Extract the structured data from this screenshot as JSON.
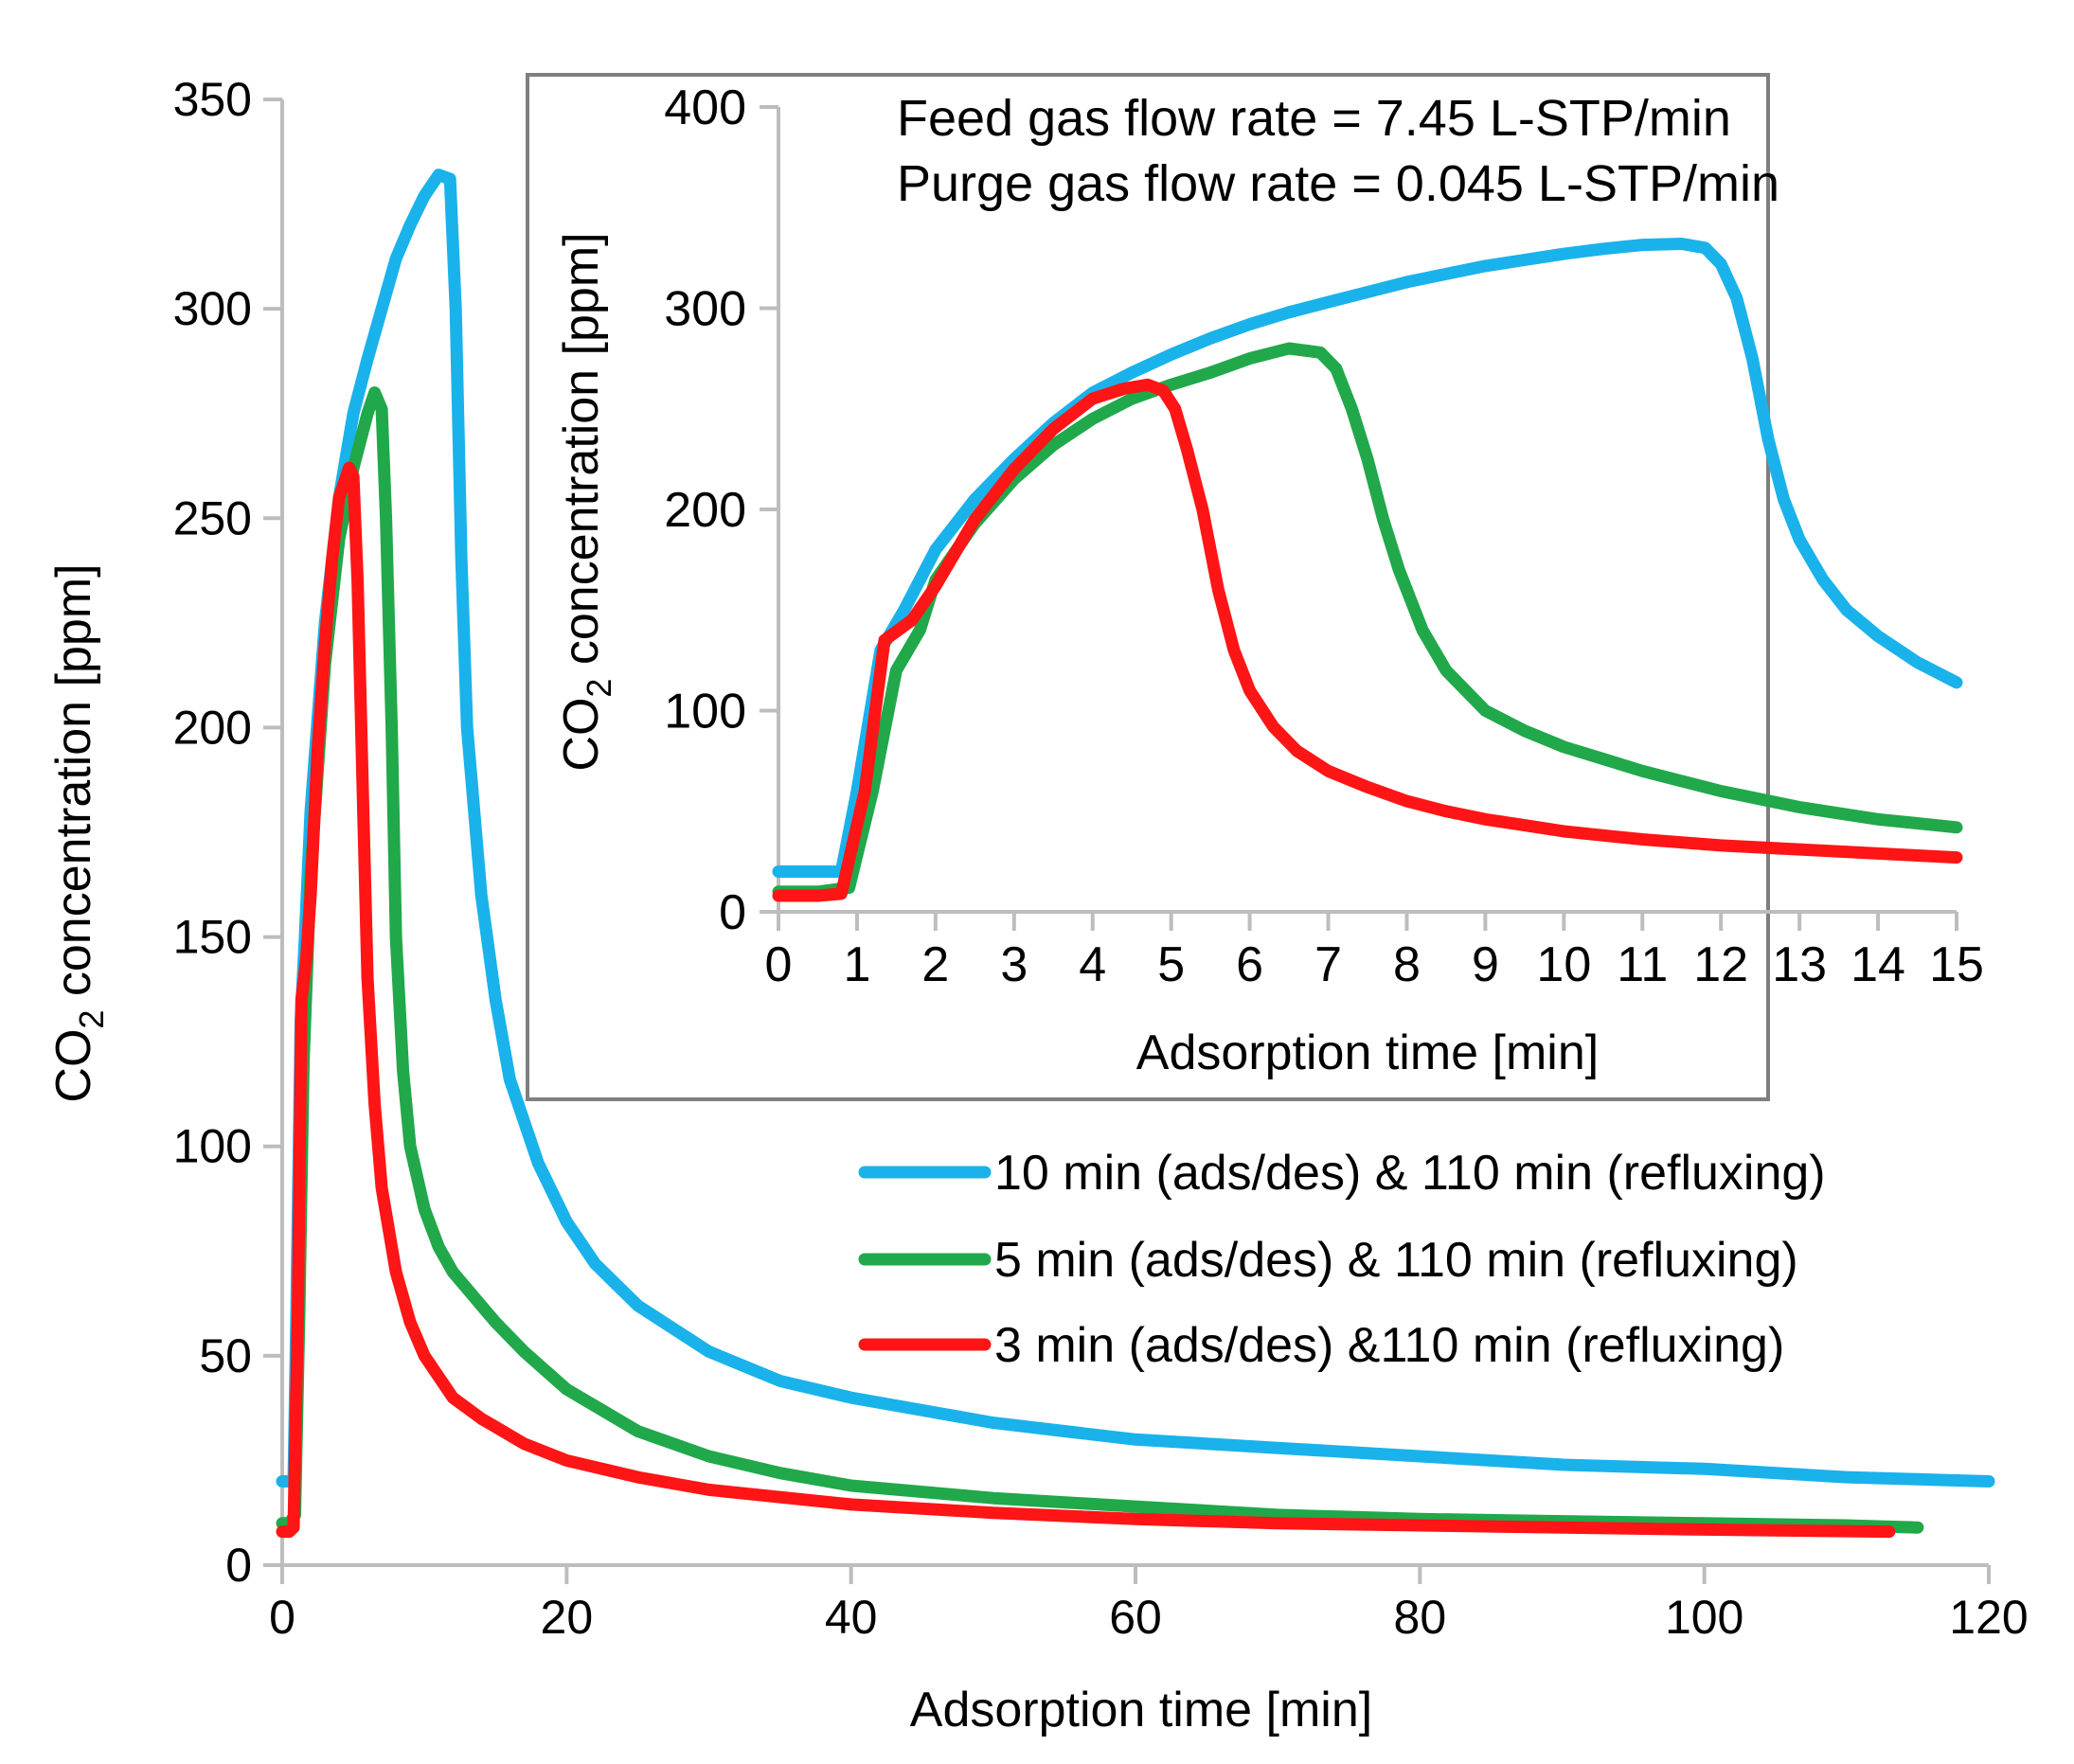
{
  "chart_data": [
    {
      "type": "line",
      "role": "main",
      "xlabel": "Adsorption time [min]",
      "ylabel_parts": {
        "pre": "CO",
        "sub": "2",
        "post": " concentration [ppm]"
      },
      "xlim": [
        0,
        120
      ],
      "ylim": [
        0,
        350
      ],
      "xticks": [
        0,
        20,
        40,
        60,
        80,
        100,
        120
      ],
      "yticks": [
        0,
        50,
        100,
        150,
        200,
        250,
        300,
        350
      ],
      "grid": false,
      "legend": {
        "position": "right-middle",
        "entries": [
          {
            "label": "10 min (ads/des) & 110 min (refluxing)",
            "color": "#1ab2eb"
          },
          {
            "label": "5 min (ads/des) & 110 min (refluxing)",
            "color": "#21a84a"
          },
          {
            "label": "3 min (ads/des) &110 min (refluxing)",
            "color": "#ff1515"
          }
        ]
      },
      "series": [
        {
          "name": "10 min (ads/des) & 110 min (refluxing)",
          "color": "#1ab2eb",
          "points": [
            [
              0,
              20
            ],
            [
              0.8,
              20
            ],
            [
              1,
              60
            ],
            [
              1.3,
              130
            ],
            [
              1.6,
              150
            ],
            [
              2,
              180
            ],
            [
              3,
              225
            ],
            [
              4,
              255
            ],
            [
              5,
              275
            ],
            [
              6,
              288
            ],
            [
              7,
              300
            ],
            [
              8,
              312
            ],
            [
              9,
              320
            ],
            [
              10,
              327
            ],
            [
              11,
              332
            ],
            [
              11.8,
              331
            ],
            [
              12.2,
              300
            ],
            [
              12.6,
              240
            ],
            [
              13,
              200
            ],
            [
              14,
              160
            ],
            [
              15,
              135
            ],
            [
              16,
              116
            ],
            [
              18,
              96
            ],
            [
              20,
              82
            ],
            [
              22,
              72
            ],
            [
              25,
              62
            ],
            [
              30,
              51
            ],
            [
              35,
              44
            ],
            [
              40,
              40
            ],
            [
              45,
              37
            ],
            [
              50,
              34
            ],
            [
              55,
              32
            ],
            [
              60,
              30
            ],
            [
              65,
              29
            ],
            [
              70,
              28
            ],
            [
              80,
              26
            ],
            [
              90,
              24
            ],
            [
              100,
              23
            ],
            [
              110,
              21
            ],
            [
              120,
              20
            ]
          ]
        },
        {
          "name": "5 min (ads/des) & 110 min (refluxing)",
          "color": "#21a84a",
          "points": [
            [
              0,
              10
            ],
            [
              0.5,
              10
            ],
            [
              0.9,
              12
            ],
            [
              1.2,
              60
            ],
            [
              1.5,
              120
            ],
            [
              2,
              165
            ],
            [
              3,
              215
            ],
            [
              4,
              245
            ],
            [
              5,
              262
            ],
            [
              6,
              275
            ],
            [
              6.5,
              280
            ],
            [
              7,
              276
            ],
            [
              7.3,
              250
            ],
            [
              7.7,
              200
            ],
            [
              8,
              150
            ],
            [
              8.5,
              118
            ],
            [
              9,
              100
            ],
            [
              10,
              85
            ],
            [
              11,
              76
            ],
            [
              12,
              70
            ],
            [
              13,
              66
            ],
            [
              14,
              62
            ],
            [
              15,
              58
            ],
            [
              17,
              51
            ],
            [
              20,
              42
            ],
            [
              25,
              32
            ],
            [
              30,
              26
            ],
            [
              35,
              22
            ],
            [
              40,
              19
            ],
            [
              50,
              16
            ],
            [
              60,
              14
            ],
            [
              70,
              12
            ],
            [
              80,
              11
            ],
            [
              90,
              10.5
            ],
            [
              100,
              10
            ],
            [
              110,
              9.5
            ],
            [
              115,
              9
            ]
          ]
        },
        {
          "name": "3 min (ads/des) &110 min (refluxing)",
          "color": "#ff1515",
          "points": [
            [
              0,
              8
            ],
            [
              0.5,
              8
            ],
            [
              0.8,
              9
            ],
            [
              1.1,
              60
            ],
            [
              1.35,
              135
            ],
            [
              1.7,
              145
            ],
            [
              2,
              160
            ],
            [
              2.5,
              195
            ],
            [
              3,
              220
            ],
            [
              3.5,
              240
            ],
            [
              4,
              255
            ],
            [
              4.7,
              262
            ],
            [
              5,
              260
            ],
            [
              5.3,
              235
            ],
            [
              5.7,
              180
            ],
            [
              6,
              140
            ],
            [
              6.5,
              110
            ],
            [
              7,
              90
            ],
            [
              8,
              70
            ],
            [
              9,
              58
            ],
            [
              10,
              50
            ],
            [
              12,
              40
            ],
            [
              14,
              35
            ],
            [
              15,
              33
            ],
            [
              17,
              29
            ],
            [
              20,
              25
            ],
            [
              25,
              21
            ],
            [
              30,
              18
            ],
            [
              40,
              14.5
            ],
            [
              50,
              12.5
            ],
            [
              60,
              11
            ],
            [
              70,
              10
            ],
            [
              80,
              9.5
            ],
            [
              90,
              9
            ],
            [
              100,
              8.5
            ],
            [
              113,
              8
            ]
          ]
        }
      ]
    },
    {
      "type": "line",
      "role": "inset",
      "position": "top-right",
      "xlabel": "Adsorption time [min]",
      "ylabel_parts": {
        "pre": "CO",
        "sub": "2",
        "post": " concentration [ppm]"
      },
      "xlim": [
        0,
        15
      ],
      "ylim": [
        0,
        400
      ],
      "xticks": [
        0,
        1,
        2,
        3,
        4,
        5,
        6,
        7,
        8,
        9,
        10,
        11,
        12,
        13,
        14,
        15
      ],
      "yticks": [
        0,
        100,
        200,
        300,
        400
      ],
      "annotations": [
        "Feed gas flow rate = 7.45 L-STP/min",
        "Purge gas flow rate = 0.045 L-STP/min"
      ],
      "series": [
        {
          "name": "10 min (ads/des) & 110 min (refluxing)",
          "color": "#1ab2eb",
          "points": [
            [
              0,
              20
            ],
            [
              0.8,
              20
            ],
            [
              1,
              60
            ],
            [
              1.3,
              130
            ],
            [
              1.6,
              150
            ],
            [
              2,
              180
            ],
            [
              2.5,
              205
            ],
            [
              3,
              225
            ],
            [
              3.5,
              243
            ],
            [
              4,
              258
            ],
            [
              4.5,
              268
            ],
            [
              5,
              277
            ],
            [
              5.5,
              285
            ],
            [
              6,
              292
            ],
            [
              6.5,
              298
            ],
            [
              7,
              303
            ],
            [
              7.5,
              308
            ],
            [
              8,
              313
            ],
            [
              8.5,
              317
            ],
            [
              9,
              321
            ],
            [
              9.5,
              324
            ],
            [
              10,
              327
            ],
            [
              10.5,
              329.5
            ],
            [
              11,
              331.5
            ],
            [
              11.5,
              332
            ],
            [
              11.8,
              330
            ],
            [
              12,
              322
            ],
            [
              12.2,
              305
            ],
            [
              12.4,
              275
            ],
            [
              12.6,
              235
            ],
            [
              12.8,
              205
            ],
            [
              13,
              185
            ],
            [
              13.3,
              165
            ],
            [
              13.6,
              150
            ],
            [
              14,
              137
            ],
            [
              14.5,
              124
            ],
            [
              15,
              114
            ]
          ]
        },
        {
          "name": "5 min (ads/des) & 110 min (refluxing)",
          "color": "#21a84a",
          "points": [
            [
              0,
              10
            ],
            [
              0.5,
              10
            ],
            [
              0.9,
              12
            ],
            [
              1.2,
              60
            ],
            [
              1.5,
              120
            ],
            [
              1.8,
              140
            ],
            [
              2,
              165
            ],
            [
              2.5,
              193
            ],
            [
              3,
              215
            ],
            [
              3.5,
              232
            ],
            [
              4,
              245
            ],
            [
              4.5,
              255
            ],
            [
              5,
              262
            ],
            [
              5.5,
              268
            ],
            [
              6,
              275
            ],
            [
              6.5,
              280
            ],
            [
              6.9,
              278
            ],
            [
              7.1,
              270
            ],
            [
              7.3,
              250
            ],
            [
              7.5,
              225
            ],
            [
              7.7,
              195
            ],
            [
              7.9,
              170
            ],
            [
              8.2,
              140
            ],
            [
              8.5,
              120
            ],
            [
              9,
              100
            ],
            [
              9.5,
              90
            ],
            [
              10,
              82
            ],
            [
              10.5,
              76
            ],
            [
              11,
              70
            ],
            [
              11.5,
              65
            ],
            [
              12,
              60
            ],
            [
              12.5,
              56
            ],
            [
              13,
              52
            ],
            [
              13.5,
              49
            ],
            [
              14,
              46
            ],
            [
              14.5,
              44
            ],
            [
              15,
              42
            ]
          ]
        },
        {
          "name": "3 min (ads/des) &110 min (refluxing)",
          "color": "#ff1515",
          "points": [
            [
              0,
              8
            ],
            [
              0.5,
              8
            ],
            [
              0.8,
              9
            ],
            [
              1.1,
              60
            ],
            [
              1.35,
              135
            ],
            [
              1.7,
              145
            ],
            [
              2,
              162
            ],
            [
              2.5,
              195
            ],
            [
              3,
              220
            ],
            [
              3.5,
              240
            ],
            [
              4,
              255
            ],
            [
              4.4,
              260
            ],
            [
              4.7,
              262
            ],
            [
              4.9,
              259
            ],
            [
              5.05,
              250
            ],
            [
              5.2,
              230
            ],
            [
              5.4,
              200
            ],
            [
              5.6,
              160
            ],
            [
              5.8,
              130
            ],
            [
              6,
              110
            ],
            [
              6.3,
              92
            ],
            [
              6.6,
              80
            ],
            [
              7,
              70
            ],
            [
              7.5,
              62
            ],
            [
              8,
              55
            ],
            [
              8.5,
              50
            ],
            [
              9,
              46
            ],
            [
              9.5,
              43
            ],
            [
              10,
              40
            ],
            [
              10.5,
              38
            ],
            [
              11,
              36
            ],
            [
              11.5,
              34.5
            ],
            [
              12,
              33
            ],
            [
              12.5,
              32
            ],
            [
              13,
              31
            ],
            [
              13.5,
              30
            ],
            [
              14,
              29
            ],
            [
              14.5,
              28
            ],
            [
              15,
              27
            ]
          ]
        }
      ]
    }
  ]
}
